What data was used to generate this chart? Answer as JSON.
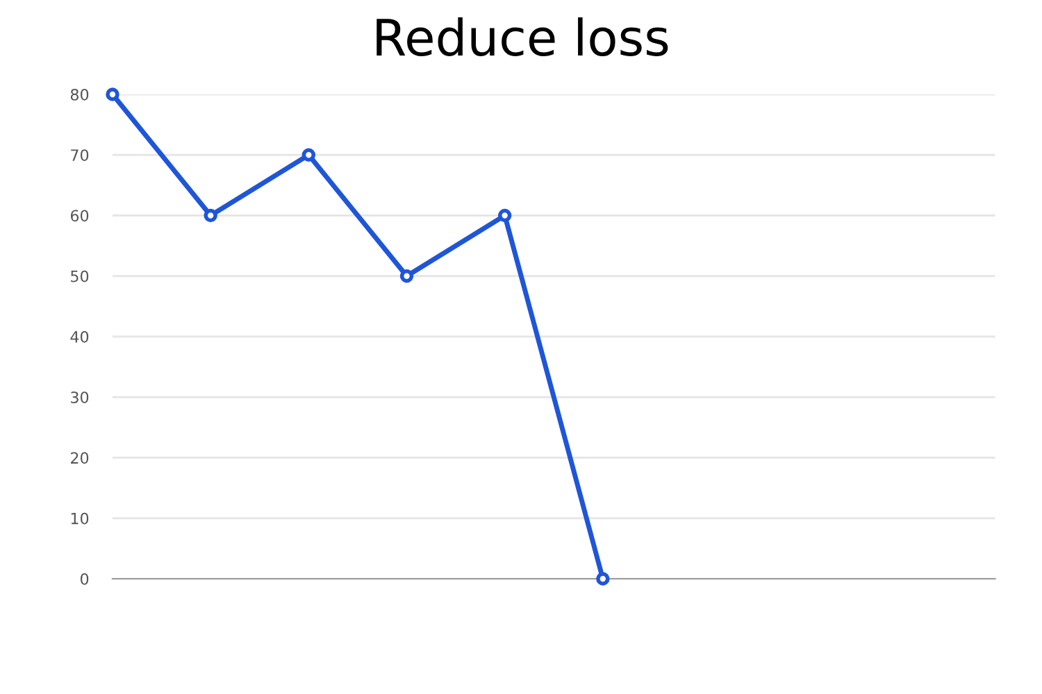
{
  "chart_data": {
    "type": "line",
    "title": "Reduce loss",
    "categories": [
      null,
      null,
      null,
      null,
      null,
      null,
      null,
      null,
      null,
      null
    ],
    "series": [
      {
        "color": "#1f56d8",
        "values": [
          80,
          60,
          70,
          50,
          60,
          0,
          null,
          null,
          null,
          null
        ]
      }
    ],
    "ylim": [
      0,
      80
    ],
    "yticks": [
      0,
      10,
      20,
      30,
      40,
      50,
      60,
      70,
      80
    ],
    "grid": "y",
    "marker": "circle",
    "line_style": "solid",
    "tick_labels": "y"
  }
}
